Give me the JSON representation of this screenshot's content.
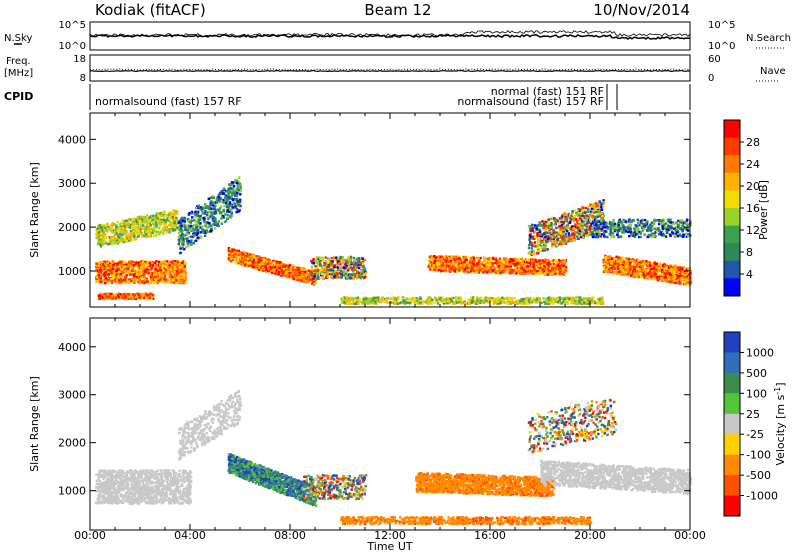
{
  "header": {
    "station": "Kodiak (fitACF)",
    "beam": "Beam 12",
    "date": "10/Nov/2014"
  },
  "top_panels": {
    "nsky_label": "N.Sky",
    "nsky_ticks": [
      "10^5",
      "10^0"
    ],
    "nsearch_label": "N.Search",
    "nsearch_ticks": [
      "10^5",
      "10^0"
    ],
    "freq_label_1": "Freq.",
    "freq_label_2": "[MHz]",
    "freq_ticks": [
      "18",
      "8"
    ],
    "nave_label": "Nave",
    "nave_ticks": [
      "60",
      "0"
    ],
    "cpid_label": "CPID",
    "cpid_segments": [
      {
        "text": "normalsound (fast) 157 RF",
        "start_hour": 0
      },
      {
        "text": "normal (fast) 151 RF",
        "start_hour": 20.6
      },
      {
        "text": "normalsound (fast) 157 RF",
        "start_hour": 21.0
      }
    ]
  },
  "chart_data": [
    {
      "type": "heatmap",
      "name": "power",
      "ylabel": "Slant Range [km]",
      "xlabel": "Time UT",
      "xlim": [
        0,
        24
      ],
      "ylim": [
        180,
        4600
      ],
      "xticks": [
        "00:00",
        "04:00",
        "08:00",
        "12:00",
        "16:00",
        "20:00",
        "00:00"
      ],
      "yticks": [
        1000,
        2000,
        3000,
        4000
      ],
      "colorbar": {
        "label": "Power [dB]",
        "ticks": [
          "28",
          "24",
          "20",
          "16",
          "12",
          "8",
          "4"
        ],
        "colors": [
          "#ff0000",
          "#ff3a00",
          "#ff7a00",
          "#ffb000",
          "#f0dc00",
          "#9ad12a",
          "#3ca14e",
          "#2e8a55",
          "#2057a8",
          "#0000ff"
        ]
      }
    },
    {
      "type": "heatmap",
      "name": "velocity",
      "ylabel": "Slant Range [km]",
      "xlabel": "Time UT",
      "xlim": [
        0,
        24
      ],
      "ylim": [
        180,
        4600
      ],
      "xticks": [
        "00:00",
        "04:00",
        "08:00",
        "12:00",
        "16:00",
        "20:00",
        "00:00"
      ],
      "yticks": [
        1000,
        2000,
        3000,
        4000
      ],
      "colorbar": {
        "label": "Velocity [m s",
        "label_exponent": "-1",
        "label_close": "]",
        "ticks": [
          "1000",
          "500",
          "100",
          "25",
          "-25",
          "-100",
          "-500",
          "-1000"
        ],
        "colors": [
          "#2040c0",
          "#2f6fb8",
          "#3c8c4c",
          "#54c43a",
          "#c8c8c8",
          "#ffd000",
          "#ff8c00",
          "#ff5000",
          "#ff0000"
        ]
      }
    }
  ],
  "x_axis": {
    "ticks": [
      "00:00",
      "04:00",
      "08:00",
      "12:00",
      "16:00",
      "20:00",
      "00:00"
    ],
    "title": "Time UT"
  }
}
